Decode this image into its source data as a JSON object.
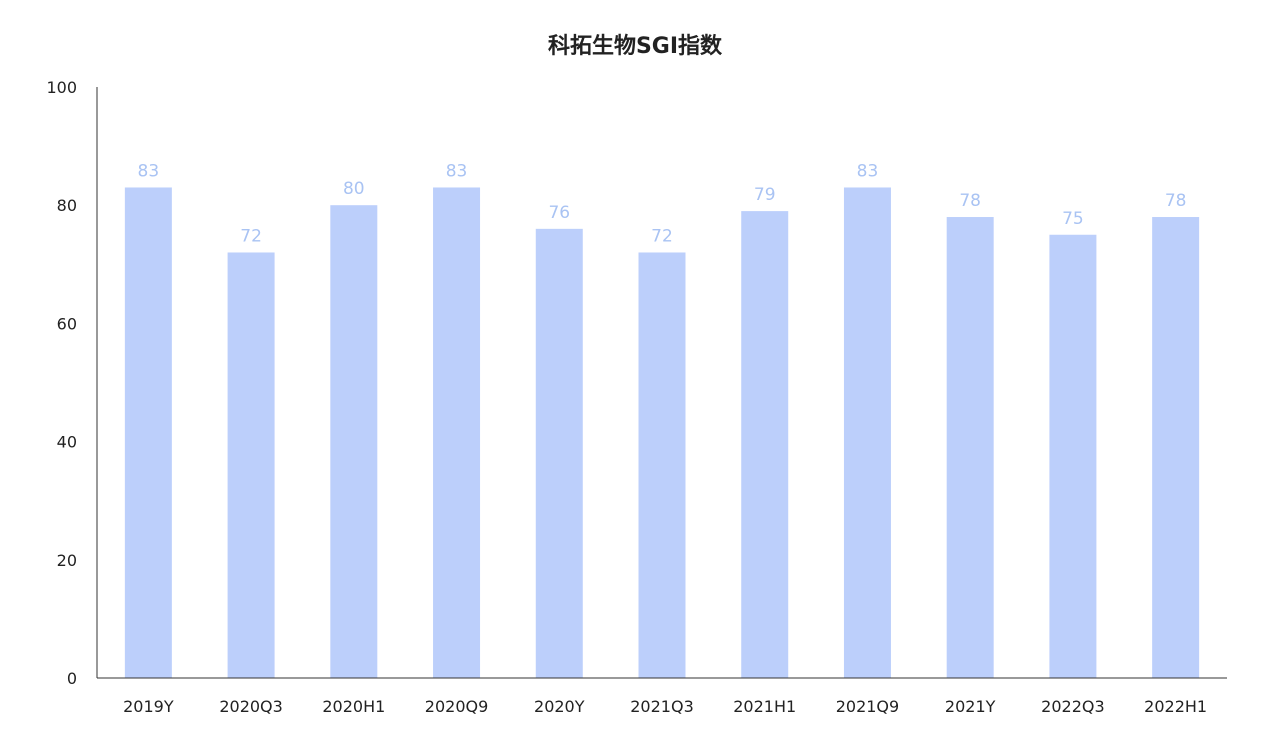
{
  "chart_data": {
    "type": "bar",
    "title": "科拓生物SGI指数",
    "xlabel": "",
    "ylabel": "",
    "categories": [
      "2019Y",
      "2020Q3",
      "2020H1",
      "2020Q9",
      "2020Y",
      "2021Q3",
      "2021H1",
      "2021Q9",
      "2021Y",
      "2022Q3",
      "2022H1"
    ],
    "series": [
      {
        "values": [
          83,
          72,
          80,
          83,
          76,
          72,
          79,
          83,
          78,
          75,
          78
        ]
      }
    ],
    "ylim": [
      0,
      100
    ],
    "yticks": [
      0,
      20,
      40,
      60,
      80,
      100
    ],
    "grid": false,
    "legend": "none",
    "bar_color": "#bccffb",
    "label_color": "#a9c3f3",
    "axis_color": "#333333"
  }
}
